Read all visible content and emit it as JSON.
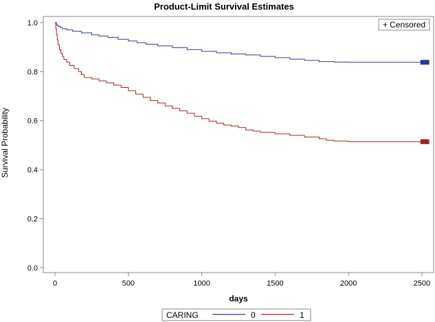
{
  "chart_data": {
    "type": "line",
    "step": true,
    "title": "Product-Limit Survival Estimates",
    "xlabel": "days",
    "ylabel": "Survival Probability",
    "xlim": [
      -80,
      2580
    ],
    "ylim": [
      -0.02,
      1.025
    ],
    "xticks": [
      0,
      500,
      1000,
      1500,
      2000,
      2500
    ],
    "yticks": [
      0.0,
      0.2,
      0.4,
      0.6,
      0.8,
      1.0
    ],
    "xtick_labels": [
      "0",
      "500",
      "1000",
      "1500",
      "2000",
      "2500"
    ],
    "ytick_labels": [
      "0.0",
      "0.2",
      "0.4",
      "0.6",
      "0.8",
      "1.0"
    ],
    "grid": false,
    "censor_legend": "+ Censored",
    "legend": {
      "title": "CARING",
      "placement": "bottom"
    },
    "series": [
      {
        "name": "0",
        "color": "#2a3a8c",
        "x": [
          0,
          10,
          20,
          35,
          50,
          80,
          120,
          180,
          250,
          300,
          360,
          430,
          500,
          560,
          620,
          700,
          800,
          900,
          1000,
          1100,
          1200,
          1300,
          1400,
          1500,
          1600,
          1700,
          1800,
          1900,
          2000,
          2500,
          2550
        ],
        "y": [
          1.0,
          0.99,
          0.985,
          0.98,
          0.975,
          0.97,
          0.965,
          0.958,
          0.95,
          0.945,
          0.94,
          0.932,
          0.925,
          0.918,
          0.912,
          0.905,
          0.898,
          0.89,
          0.883,
          0.877,
          0.872,
          0.868,
          0.862,
          0.857,
          0.851,
          0.846,
          0.841,
          0.839,
          0.838,
          0.838,
          0.838
        ]
      },
      {
        "name": "1",
        "color": "#9c2424",
        "x": [
          0,
          5,
          10,
          15,
          20,
          30,
          40,
          50,
          60,
          80,
          100,
          130,
          160,
          180,
          200,
          250,
          300,
          350,
          400,
          450,
          500,
          550,
          600,
          650,
          700,
          750,
          800,
          850,
          900,
          950,
          1000,
          1050,
          1100,
          1150,
          1200,
          1250,
          1300,
          1350,
          1400,
          1500,
          1600,
          1700,
          1800,
          1850,
          1900,
          2000,
          2500,
          2550
        ],
        "y": [
          1.0,
          0.975,
          0.95,
          0.93,
          0.91,
          0.89,
          0.875,
          0.862,
          0.85,
          0.838,
          0.825,
          0.812,
          0.8,
          0.788,
          0.776,
          0.77,
          0.762,
          0.754,
          0.745,
          0.735,
          0.722,
          0.708,
          0.695,
          0.682,
          0.672,
          0.66,
          0.65,
          0.64,
          0.63,
          0.618,
          0.608,
          0.598,
          0.59,
          0.582,
          0.578,
          0.572,
          0.562,
          0.557,
          0.552,
          0.546,
          0.54,
          0.533,
          0.526,
          0.52,
          0.517,
          0.514,
          0.514,
          0.514
        ]
      }
    ]
  }
}
